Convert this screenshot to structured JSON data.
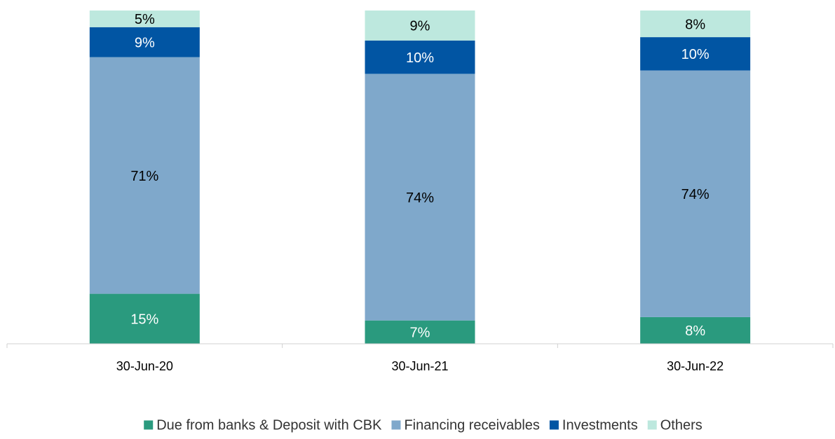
{
  "chart_data": {
    "type": "stacked_bar",
    "categories": [
      "30-Jun-20",
      "30-Jun-21",
      "30-Jun-22"
    ],
    "series": [
      {
        "name": "Due from banks & Deposit with CBK",
        "color": "#2a9a7e",
        "values": [
          15,
          7,
          8
        ],
        "value_labels": [
          "15%",
          "7%",
          "8%"
        ]
      },
      {
        "name": "Financing receivables",
        "color": "#7fa8cb",
        "values": [
          71,
          74,
          74
        ],
        "value_labels": [
          "71%",
          "74%",
          "74%"
        ]
      },
      {
        "name": "Investments",
        "color": "#0155a3",
        "values": [
          9,
          10,
          10
        ],
        "value_labels": [
          "9%",
          "10%",
          "10%"
        ]
      },
      {
        "name": "Others",
        "color": "#bde8de",
        "values": [
          5,
          9,
          8
        ],
        "value_labels": [
          "5%",
          "9%",
          "8%"
        ]
      }
    ],
    "ylim": [
      0,
      100
    ],
    "legend": "bottom"
  }
}
